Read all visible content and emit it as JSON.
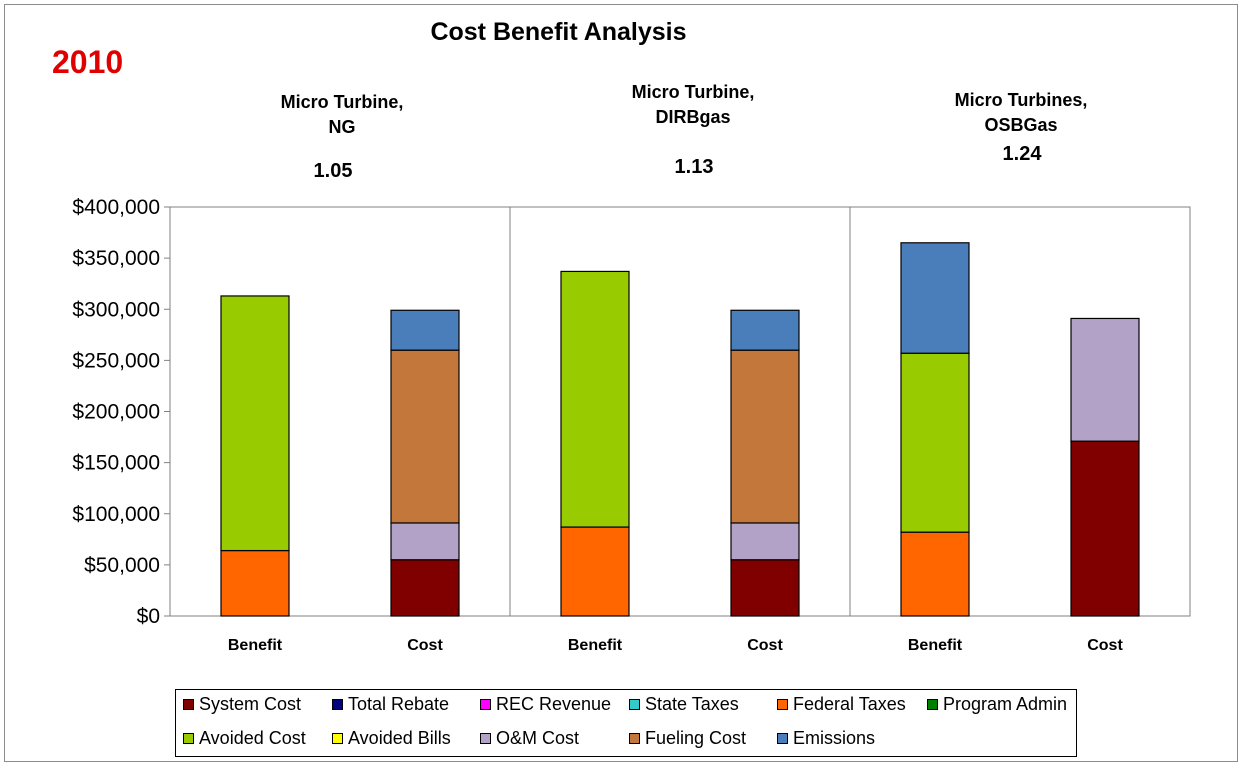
{
  "chart_data": {
    "type": "bar",
    "stacked": true,
    "title": "Cost Benefit Analysis",
    "year_label": "2010",
    "ylim": [
      0,
      400000
    ],
    "yticks": [
      "$0",
      "$50,000",
      "$100,000",
      "$150,000",
      "$200,000",
      "$250,000",
      "$300,000",
      "$350,000",
      "$400,000"
    ],
    "panels": [
      {
        "title_lines": [
          "Micro Turbine,",
          "NG"
        ],
        "ratio": "1.05",
        "categories": [
          "Benefit",
          "Cost"
        ]
      },
      {
        "title_lines": [
          "Micro Turbine,",
          "DIRBgas"
        ],
        "ratio": "1.13",
        "categories": [
          "Benefit",
          "Cost"
        ]
      },
      {
        "title_lines": [
          "Micro Turbines,",
          "OSBGas"
        ],
        "ratio": "1.24",
        "categories": [
          "Benefit",
          "Cost"
        ]
      }
    ],
    "series": [
      {
        "name": "System Cost",
        "color": "#800000",
        "values": [
          0,
          55000,
          0,
          55000,
          0,
          171000
        ]
      },
      {
        "name": "Total Rebate",
        "color": "#000080",
        "values": [
          0,
          0,
          0,
          0,
          0,
          0
        ]
      },
      {
        "name": "REC Revenue",
        "color": "#ff00ff",
        "values": [
          0,
          0,
          0,
          0,
          0,
          0
        ]
      },
      {
        "name": "State Taxes",
        "color": "#33cccc",
        "values": [
          0,
          0,
          0,
          0,
          0,
          0
        ]
      },
      {
        "name": "Federal Taxes",
        "color": "#ff6600",
        "values": [
          64000,
          0,
          87000,
          0,
          82000,
          0
        ]
      },
      {
        "name": "Program Admin",
        "color": "#008000",
        "values": [
          0,
          0,
          0,
          0,
          0,
          0
        ]
      },
      {
        "name": "Avoided Cost",
        "color": "#99cc00",
        "values": [
          249000,
          0,
          250000,
          0,
          175000,
          0
        ]
      },
      {
        "name": "Avoided Bills",
        "color": "#ffff00",
        "values": [
          0,
          0,
          0,
          0,
          0,
          0
        ]
      },
      {
        "name": "O&M Cost",
        "color": "#b3a2c7",
        "values": [
          0,
          36000,
          0,
          36000,
          0,
          120000
        ]
      },
      {
        "name": "Fueling  Cost",
        "color": "#c4773b",
        "values": [
          0,
          169000,
          0,
          169000,
          0,
          0
        ]
      },
      {
        "name": "Emissions",
        "color": "#4a7ebb",
        "values": [
          0,
          39000,
          0,
          39000,
          108000,
          0
        ]
      }
    ],
    "grid": false,
    "legend": "bottom"
  }
}
